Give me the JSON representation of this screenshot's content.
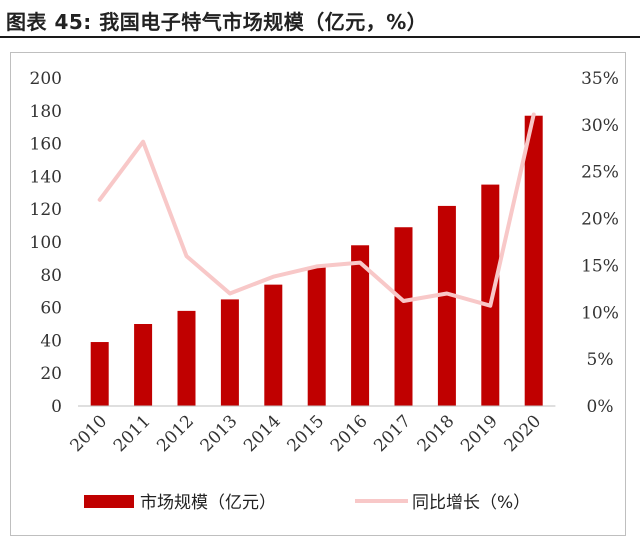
{
  "figure": {
    "title": "图表 45:  我国电子特气市场规模（亿元，%）"
  },
  "chart_data": {
    "type": "bar",
    "categories": [
      "2010",
      "2011",
      "2012",
      "2013",
      "2014",
      "2015",
      "2016",
      "2017",
      "2018",
      "2019",
      "2020"
    ],
    "series": [
      {
        "name": "市场规模（亿元）",
        "type": "bar",
        "axis": "left",
        "color": "#c00000",
        "values": [
          39,
          50,
          58,
          65,
          74,
          85,
          98,
          109,
          122,
          135,
          177
        ]
      },
      {
        "name": "同比增长（%）",
        "type": "line",
        "axis": "right",
        "color": "#f8c8c8",
        "values": [
          22.0,
          28.2,
          16.0,
          12.0,
          13.8,
          14.9,
          15.3,
          11.2,
          12.0,
          10.7,
          31.1
        ]
      }
    ],
    "y_left": {
      "min": 0,
      "max": 200,
      "ticks": [
        "0",
        "20",
        "40",
        "60",
        "80",
        "100",
        "120",
        "140",
        "160",
        "180",
        "200"
      ]
    },
    "y_right": {
      "min": 0,
      "max": 35,
      "ticks": [
        "0%",
        "5%",
        "10%",
        "15%",
        "20%",
        "25%",
        "30%",
        "35%"
      ]
    },
    "grid": false,
    "legend_position": "bottom"
  }
}
